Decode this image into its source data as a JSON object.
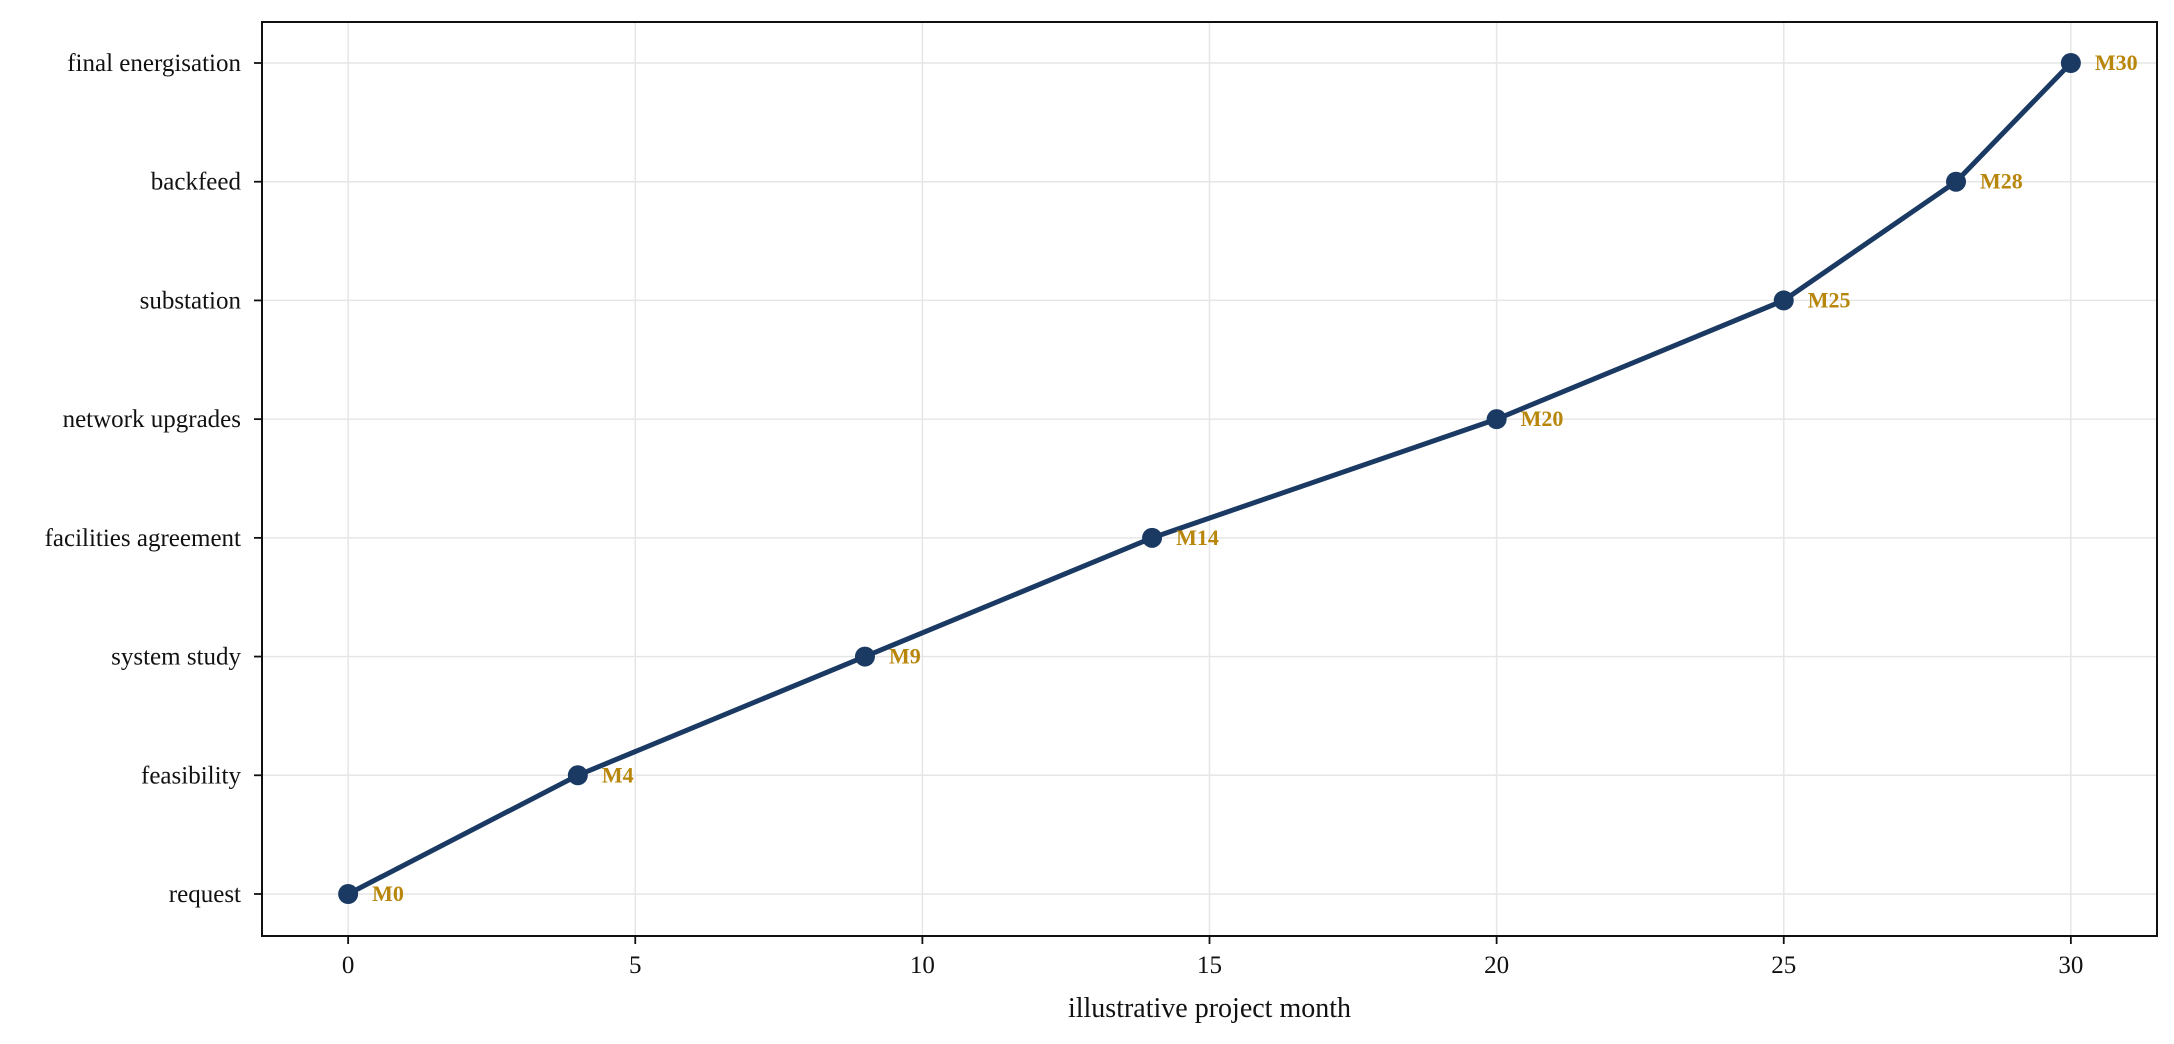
{
  "chart_data": {
    "type": "line",
    "title": "",
    "xlabel": "illustrative project month",
    "ylabel": "",
    "xlim": [
      -1.5,
      31.5
    ],
    "xticks": [
      0,
      5,
      10,
      15,
      20,
      25,
      30
    ],
    "categories": [
      "request",
      "feasibility",
      "system study",
      "facilities agreement",
      "network upgrades",
      "substation",
      "backfeed",
      "final energisation"
    ],
    "grid": true,
    "legend": "none",
    "series": [
      {
        "x": [
          0,
          4,
          9,
          14,
          20,
          25,
          28,
          30
        ],
        "y": [
          "request",
          "feasibility",
          "system study",
          "facilities agreement",
          "network upgrades",
          "substation",
          "backfeed",
          "final energisation"
        ],
        "point_labels": [
          "M0",
          "M4",
          "M9",
          "M14",
          "M20",
          "M25",
          "M28",
          "M30"
        ]
      }
    ],
    "colors": {
      "line": "#1b3a63",
      "marker": "#1b3a63",
      "point_label": "#b8860b",
      "grid": "#e6e6e6",
      "axis": "#111111"
    }
  }
}
